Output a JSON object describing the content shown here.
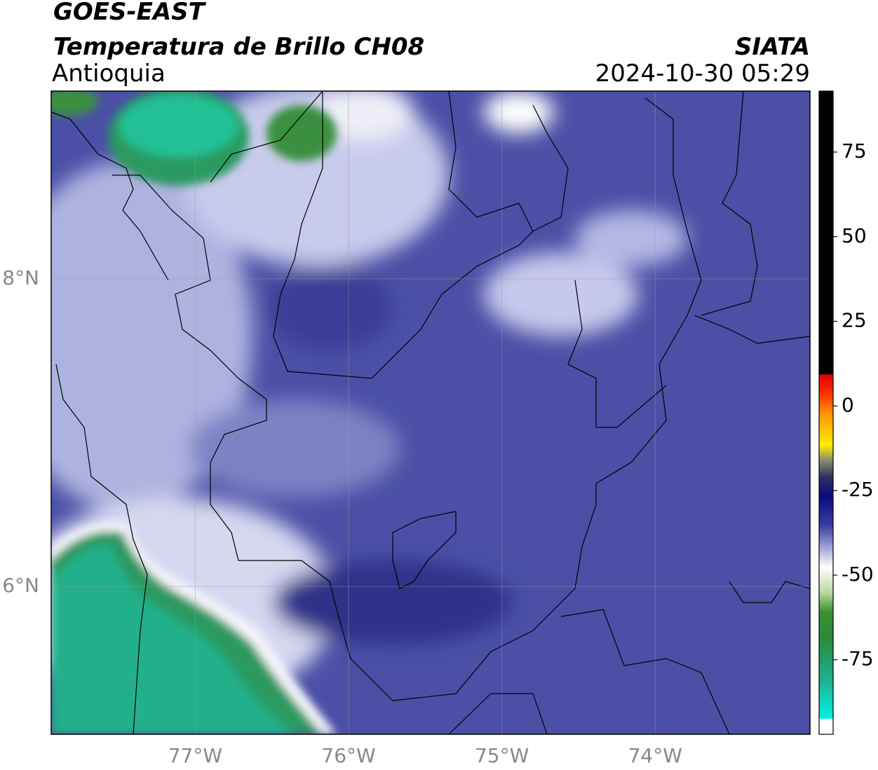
{
  "header": {
    "title": "GOES-EAST",
    "subtitle": "Temperatura de Brillo CH08",
    "region": "Antioquia",
    "source": "SIATA",
    "datetime": "2024-10-30 05:29"
  },
  "map": {
    "xlim": [
      -77.94,
      -72.99
    ],
    "ylim": [
      5.04,
      9.22
    ],
    "xticks": [
      {
        "value": -77,
        "label": "77°W"
      },
      {
        "value": -76,
        "label": "76°W"
      },
      {
        "value": -75,
        "label": "75°W"
      },
      {
        "value": -74,
        "label": "74°W"
      }
    ],
    "yticks": [
      {
        "value": 8,
        "label": "8°N"
      },
      {
        "value": 6,
        "label": "6°N"
      }
    ],
    "grid": true
  },
  "colorbar": {
    "lim": [
      -97,
      93
    ],
    "ticks": [
      75,
      50,
      25,
      0,
      -25,
      -50,
      -75
    ]
  }
}
